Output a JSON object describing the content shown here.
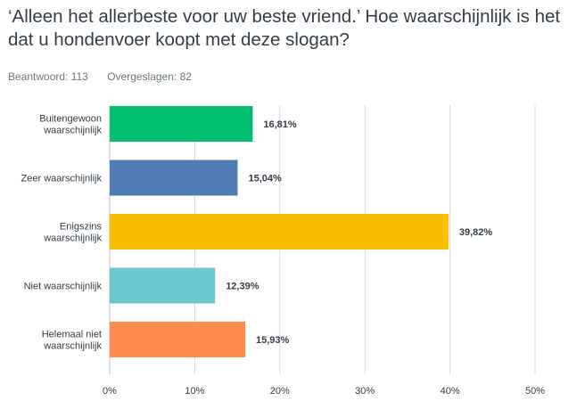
{
  "question": "‘Alleen het allerbeste voor uw beste vriend.’ Hoe waarschijnlijk is het dat u hondenvoer koopt met deze slogan?",
  "stats": {
    "answered": "Beantwoord: 113",
    "skipped": "Overgeslagen: 82"
  },
  "chart_data": {
    "type": "bar",
    "orientation": "horizontal",
    "categories": [
      [
        "Buitengewoon",
        "waarschijnlijk"
      ],
      [
        "Zeer waarschijnlijk"
      ],
      [
        "Enigszins",
        "waarschijnlijk"
      ],
      [
        "Niet waarschijnlijk"
      ],
      [
        "Helemaal niet",
        "waarschijnlijk"
      ]
    ],
    "values": [
      16.81,
      15.04,
      39.82,
      12.39,
      15.93
    ],
    "value_labels": [
      "16,81%",
      "15,04%",
      "39,82%",
      "12,39%",
      "15,93%"
    ],
    "colors": [
      "#00bf6f",
      "#507cb6",
      "#f9be00",
      "#6bc8cd",
      "#ff8b4f"
    ],
    "xlim": [
      0,
      50
    ],
    "xticks": [
      0,
      10,
      20,
      30,
      40,
      50
    ],
    "xtick_labels": [
      "0%",
      "10%",
      "20%",
      "30%",
      "40%",
      "50%"
    ],
    "grid": true
  }
}
